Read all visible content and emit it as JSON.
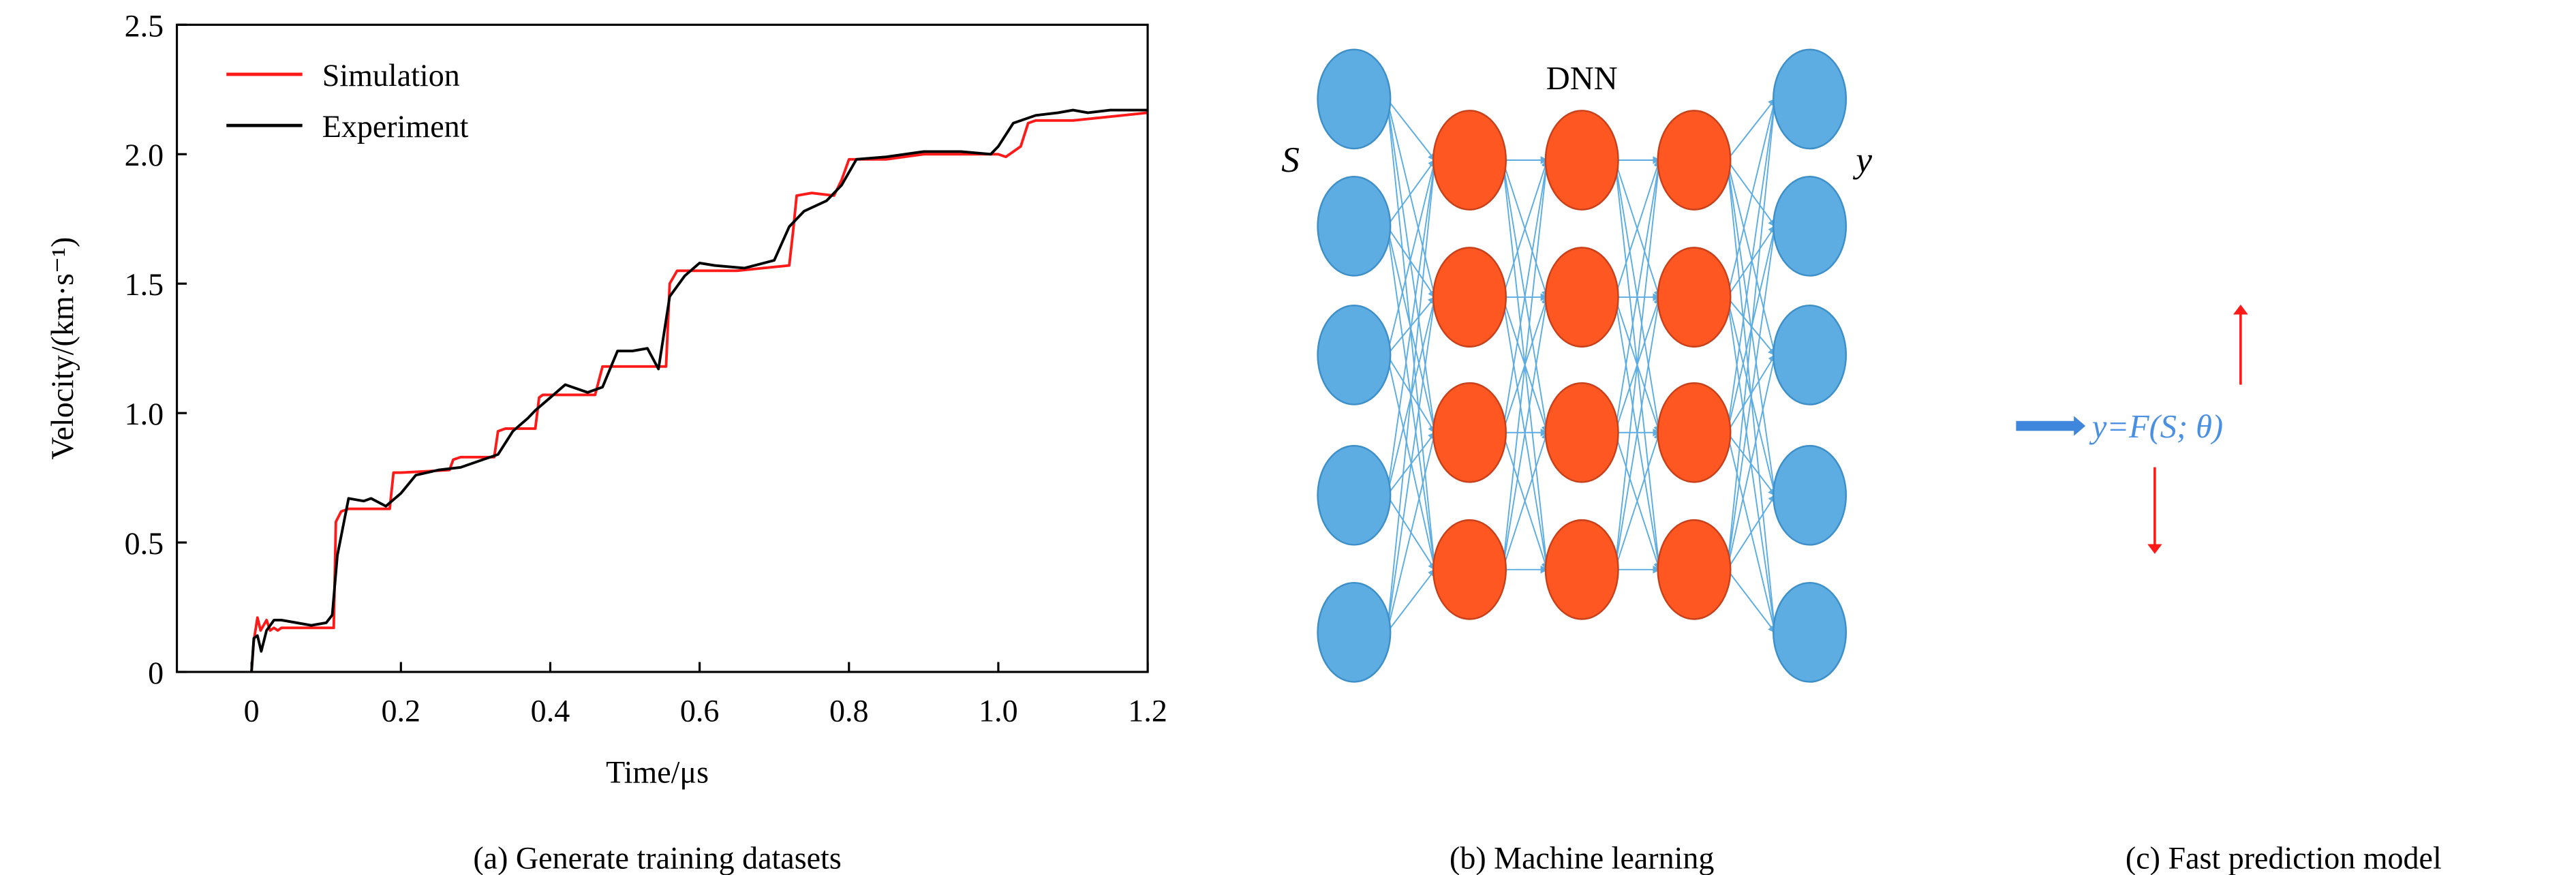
{
  "chart_data": {
    "type": "line",
    "xlabel": "Time/μs",
    "ylabel": "Velocity/(km·s⁻¹)",
    "xlim": [
      -0.1,
      1.2
    ],
    "ylim": [
      0,
      2.5
    ],
    "xticks": [
      "0",
      "0.2",
      "0.4",
      "0.6",
      "0.8",
      "1.0",
      "1.2"
    ],
    "xtick_values": [
      0,
      0.2,
      0.4,
      0.6,
      0.8,
      1.0,
      1.2
    ],
    "yticks": [
      "0",
      "0.5",
      "1.0",
      "1.5",
      "2.0",
      "2.5"
    ],
    "ytick_values": [
      0,
      0.5,
      1.0,
      1.5,
      2.0,
      2.5
    ],
    "grid": false,
    "legend_position": "top-left",
    "series": [
      {
        "name": "Simulation",
        "color": "#ff1a1a",
        "x": [
          0,
          0.003,
          0.008,
          0.012,
          0.016,
          0.02,
          0.025,
          0.03,
          0.035,
          0.04,
          0.06,
          0.11,
          0.113,
          0.12,
          0.13,
          0.185,
          0.19,
          0.2,
          0.265,
          0.27,
          0.28,
          0.325,
          0.33,
          0.34,
          0.38,
          0.385,
          0.39,
          0.46,
          0.47,
          0.48,
          0.555,
          0.56,
          0.57,
          0.6,
          0.65,
          0.72,
          0.725,
          0.73,
          0.75,
          0.78,
          0.79,
          0.8,
          0.85,
          0.9,
          1.0,
          1.01,
          1.03,
          1.04,
          1.05,
          1.1,
          1.2
        ],
        "y": [
          0,
          0.12,
          0.21,
          0.16,
          0.18,
          0.2,
          0.16,
          0.17,
          0.16,
          0.17,
          0.17,
          0.17,
          0.58,
          0.62,
          0.63,
          0.63,
          0.77,
          0.77,
          0.78,
          0.82,
          0.83,
          0.83,
          0.93,
          0.94,
          0.94,
          1.06,
          1.07,
          1.07,
          1.18,
          1.18,
          1.18,
          1.5,
          1.55,
          1.55,
          1.55,
          1.57,
          1.7,
          1.84,
          1.85,
          1.84,
          1.9,
          1.98,
          1.98,
          2.0,
          2.0,
          1.99,
          2.03,
          2.12,
          2.13,
          2.13,
          2.16
        ]
      },
      {
        "name": "Experiment",
        "color": "#000000",
        "x": [
          0,
          0.003,
          0.008,
          0.013,
          0.02,
          0.03,
          0.04,
          0.06,
          0.08,
          0.1,
          0.108,
          0.115,
          0.13,
          0.15,
          0.16,
          0.18,
          0.2,
          0.22,
          0.25,
          0.28,
          0.31,
          0.33,
          0.35,
          0.37,
          0.38,
          0.4,
          0.42,
          0.45,
          0.47,
          0.49,
          0.51,
          0.53,
          0.545,
          0.56,
          0.58,
          0.6,
          0.62,
          0.66,
          0.7,
          0.72,
          0.74,
          0.77,
          0.79,
          0.81,
          0.85,
          0.9,
          0.95,
          0.99,
          1.0,
          1.02,
          1.05,
          1.08,
          1.1,
          1.12,
          1.15,
          1.2
        ],
        "y": [
          0,
          0.13,
          0.14,
          0.08,
          0.16,
          0.2,
          0.2,
          0.19,
          0.18,
          0.19,
          0.22,
          0.45,
          0.67,
          0.66,
          0.67,
          0.64,
          0.69,
          0.76,
          0.78,
          0.79,
          0.82,
          0.84,
          0.93,
          0.98,
          1.01,
          1.06,
          1.11,
          1.08,
          1.1,
          1.24,
          1.24,
          1.25,
          1.17,
          1.45,
          1.53,
          1.58,
          1.57,
          1.56,
          1.59,
          1.72,
          1.78,
          1.82,
          1.88,
          1.98,
          1.99,
          2.01,
          2.01,
          2.0,
          2.03,
          2.12,
          2.15,
          2.16,
          2.17,
          2.16,
          2.17,
          2.17
        ]
      }
    ]
  },
  "captions": {
    "a": "(a) Generate training datasets",
    "b": "(b) Machine learning",
    "c": "(c) Fast prediction model"
  },
  "network": {
    "title": "DNN",
    "input_label": "S",
    "output_label": "y",
    "layers": [
      5,
      4,
      4,
      4,
      5
    ],
    "node_colors": {
      "input_output": "#5dade2",
      "hidden": "#ff5722",
      "edge": "#5dade2"
    }
  },
  "model": {
    "formula": "y=F(S; θ)",
    "formula_color": "#4a90e2",
    "arrow_color": "#3f86dd",
    "indicator_color": "#ff1a1a"
  }
}
